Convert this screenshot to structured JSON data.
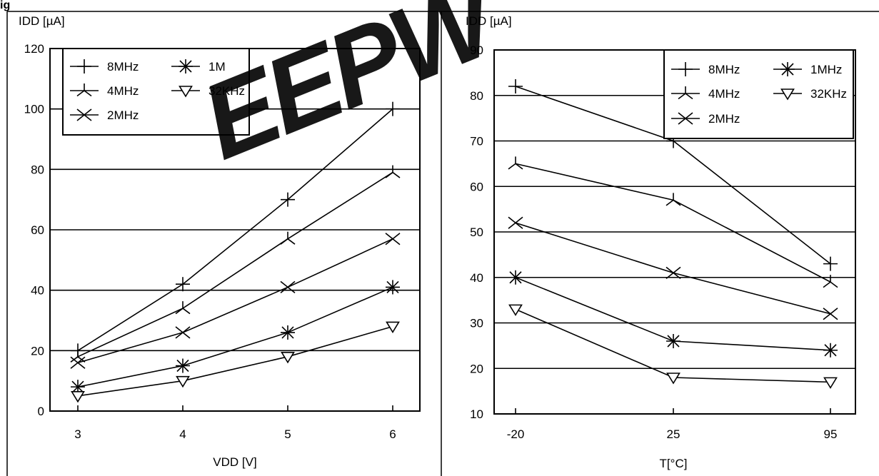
{
  "caption_fragment": "ig",
  "watermark": {
    "text": "EEPW",
    "color": "#e8323c"
  },
  "chart_data": [
    {
      "type": "line",
      "ylabel": "IDD [µA]",
      "xlabel": "VDD [V]",
      "x": [
        "3",
        "4",
        "5",
        "6"
      ],
      "ylim": [
        0,
        120
      ],
      "yticks": [
        "0",
        "20",
        "40",
        "60",
        "80",
        "100",
        "120"
      ],
      "grid": true,
      "legend_position": "top-left",
      "legend": [
        "8MHz",
        "1M",
        "4MHz",
        "32KHz",
        "2MHz"
      ],
      "series": [
        {
          "name": "8MHz",
          "marker": "plus",
          "values": [
            20,
            42,
            70,
            100
          ]
        },
        {
          "name": "4MHz",
          "marker": "tri-star",
          "values": [
            18,
            34,
            57,
            79
          ]
        },
        {
          "name": "2MHz",
          "marker": "cross",
          "values": [
            16,
            26,
            41,
            57
          ]
        },
        {
          "name": "1M",
          "marker": "asterisk",
          "values": [
            8,
            15,
            26,
            41
          ]
        },
        {
          "name": "32KHz",
          "marker": "triangle-down",
          "values": [
            5,
            10,
            18,
            28
          ]
        }
      ]
    },
    {
      "type": "line",
      "ylabel": "IDD [µA]",
      "xlabel": "T[°C]",
      "x": [
        "-20",
        "25",
        "95"
      ],
      "ylim": [
        10,
        90
      ],
      "yticks": [
        "10",
        "20",
        "30",
        "40",
        "50",
        "60",
        "70",
        "80",
        "90"
      ],
      "grid": true,
      "legend_position": "top-right",
      "legend": [
        "8MHz",
        "1MHz",
        "4MHz",
        "32KHz",
        "2MHz"
      ],
      "series": [
        {
          "name": "8MHz",
          "marker": "plus",
          "values": [
            82,
            70,
            43
          ]
        },
        {
          "name": "4MHz",
          "marker": "tri-star",
          "values": [
            65,
            57,
            39
          ]
        },
        {
          "name": "2MHz",
          "marker": "cross",
          "values": [
            52,
            41,
            32
          ]
        },
        {
          "name": "1MHz",
          "marker": "asterisk",
          "values": [
            40,
            26,
            24
          ]
        },
        {
          "name": "32KHz",
          "marker": "triangle-down",
          "values": [
            33,
            18,
            17
          ]
        }
      ]
    }
  ]
}
